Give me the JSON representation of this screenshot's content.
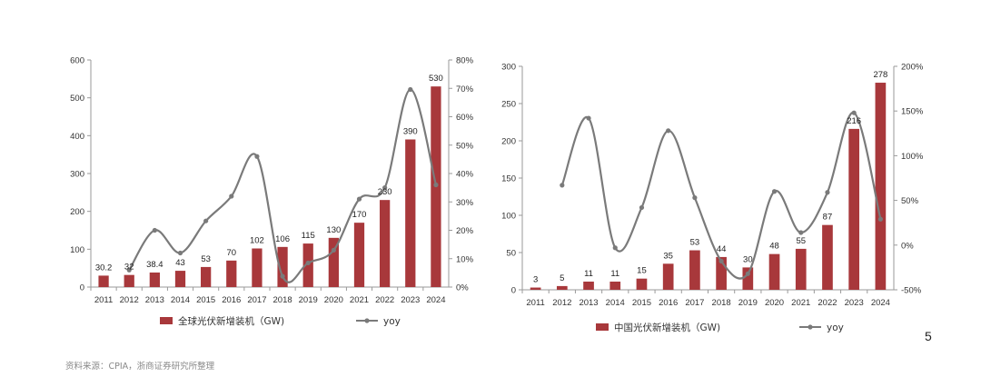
{
  "page_number": "5",
  "source_note": "资料来源：CPIA，浙商证券研究所整理",
  "colors": {
    "bar": "#a8383b",
    "line": "#7a7a7a",
    "axis": "#9a9a9a"
  },
  "chart_data": [
    {
      "type": "bar",
      "categories": [
        "2011",
        "2012",
        "2013",
        "2014",
        "2015",
        "2016",
        "2017",
        "2018",
        "2019",
        "2020",
        "2021",
        "2022",
        "2023",
        "2024"
      ],
      "series": [
        {
          "name": "全球光伏新增装机（GW)",
          "type": "bar",
          "axis": "left",
          "values": [
            30.2,
            32,
            38.4,
            43,
            53,
            70,
            102,
            106,
            115,
            130,
            170,
            230,
            390,
            530
          ],
          "labels": [
            "30.2",
            "32",
            "38.4",
            "43",
            "53",
            "70",
            "102",
            "106",
            "115",
            "130",
            "170",
            "230",
            "390",
            "530"
          ]
        },
        {
          "name": "yoy",
          "type": "line",
          "axis": "right",
          "values": [
            null,
            6,
            20,
            12,
            23.3,
            32,
            46,
            3.8,
            8.5,
            13,
            31,
            35,
            69.6,
            36
          ]
        }
      ],
      "left_axis": {
        "ylim": [
          0,
          600
        ],
        "ticks": [
          "0",
          "100",
          "200",
          "300",
          "400",
          "500",
          "600"
        ]
      },
      "right_axis": {
        "ylim": [
          0,
          80
        ],
        "ticks": [
          "0%",
          "10%",
          "20%",
          "30%",
          "40%",
          "50%",
          "60%",
          "70%",
          "80%"
        ]
      },
      "legend_position": "bottom"
    },
    {
      "type": "bar",
      "categories": [
        "2011",
        "2012",
        "2013",
        "2014",
        "2015",
        "2016",
        "2017",
        "2018",
        "2019",
        "2020",
        "2021",
        "2022",
        "2023",
        "2024"
      ],
      "series": [
        {
          "name": "中国光伏新增装机（GW)",
          "type": "bar",
          "axis": "left",
          "values": [
            3,
            5,
            11,
            11,
            15,
            35,
            53,
            44,
            30,
            48,
            55,
            87,
            216,
            278
          ],
          "labels": [
            "3",
            "5",
            "11",
            "11",
            "15",
            "35",
            "53",
            "44",
            "30",
            "48",
            "55",
            "87",
            "216",
            "278"
          ]
        },
        {
          "name": "yoy",
          "type": "line",
          "axis": "right",
          "values": [
            null,
            67,
            142,
            -3,
            42,
            128,
            53,
            -18,
            -32,
            60,
            14,
            59,
            148,
            29
          ]
        }
      ],
      "left_axis": {
        "ylim": [
          0,
          300
        ],
        "ticks": [
          "0",
          "50",
          "100",
          "150",
          "200",
          "250",
          "300"
        ]
      },
      "right_axis": {
        "ylim": [
          -50,
          200
        ],
        "ticks": [
          "-50%",
          "0%",
          "50%",
          "100%",
          "150%",
          "200%"
        ]
      },
      "legend_position": "bottom"
    }
  ]
}
